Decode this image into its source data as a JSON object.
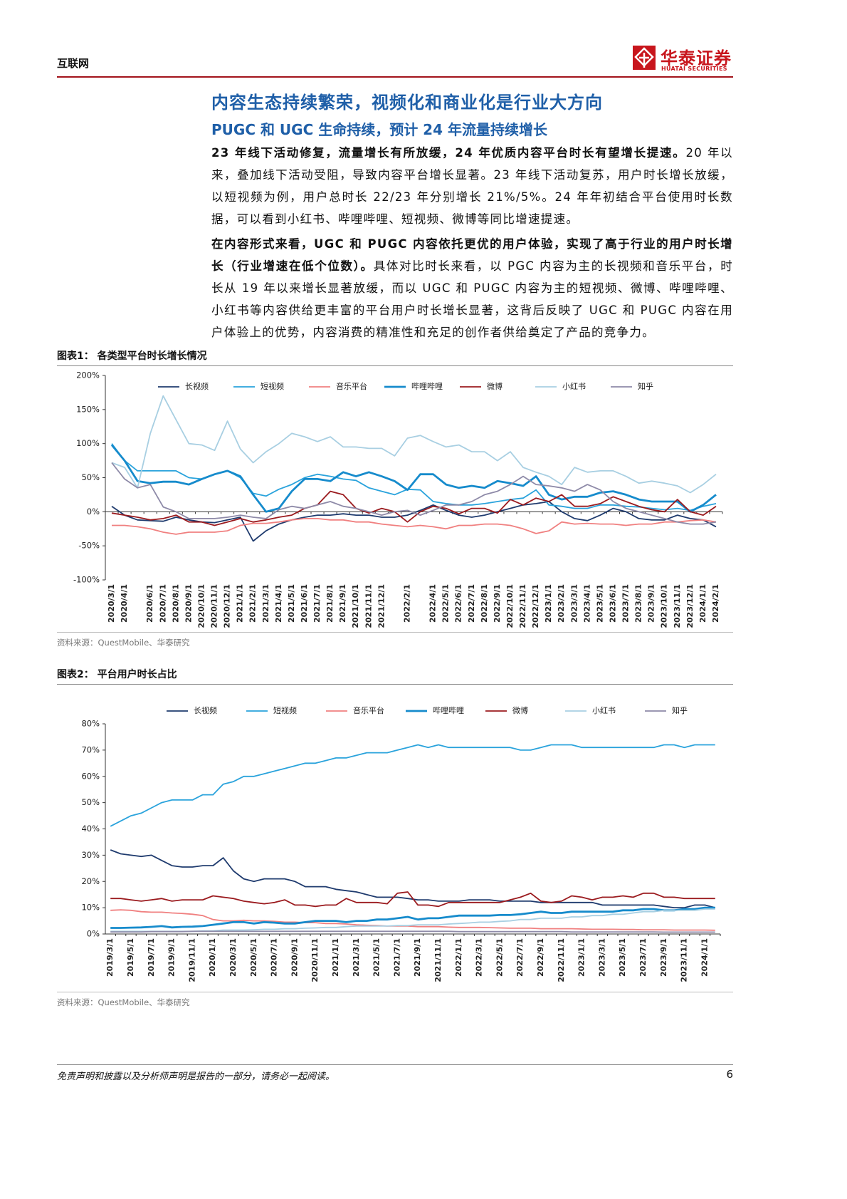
{
  "header": {
    "section": "互联网",
    "logo_cn": "华泰证券",
    "logo_en": "HUATAI SECURITIES"
  },
  "heading": "内容生态持续繁荣，视频化和商业化是行业大方向",
  "subheading": "PUGC 和 UGC 生命持续，预计 24 年流量持续增长",
  "paragraphs": [
    {
      "bold": "23 年线下活动修复，流量增长有所放缓，24 年优质内容平台时长有望增长提速。",
      "text": "20 年以来，叠加线下活动受阻，导致内容平台增长显著。23 年线下活动复苏，用户时长增长放缓，以短视频为例，用户总时长 22/23 年分别增长 21%/5%。24 年年初结合平台使用时长数据，可以看到小红书、哔哩哔哩、短视频、微博等同比增速提速。"
    },
    {
      "bold": "在内容形式来看，UGC 和 PUGC 内容依托更优的用户体验，实现了高于行业的用户时长增长（行业增速在低个位数）。",
      "text": "具体对比时长来看，以 PGC 内容为主的长视频和音乐平台，时长从 19 年以来增长显著放缓，而以 UGC 和 PUGC 内容为主的短视频、微博、哔哩哔哩、小红书等内容供给更丰富的平台用户时长增长显著，这背后反映了 UGC 和 PUGC 内容在用户体验上的优势，内容消费的精准性和充足的创作者供给奠定了产品的竞争力。"
    }
  ],
  "chart_data": [
    {
      "type": "line",
      "title": "图表1： 各类型平台时长增长情况",
      "source": "资料来源：QuestMobile、华泰研究",
      "legend": "top",
      "grid": false,
      "ylim": [
        -100,
        200
      ],
      "yticks": [
        {
          "value": -100,
          "label": "-100%"
        },
        {
          "value": -50,
          "label": "-50%"
        },
        {
          "value": 0,
          "label": "0%"
        },
        {
          "value": 50,
          "label": "50%"
        },
        {
          "value": 100,
          "label": "100%"
        },
        {
          "value": 150,
          "label": "150%"
        },
        {
          "value": 200,
          "label": "200%"
        }
      ],
      "categories": [
        "2020/3/1",
        "2020/4/1",
        null,
        "2020/6/1",
        "2020/7/1",
        "2020/8/1",
        "2020/9/1",
        "2020/10/1",
        "2020/11/1",
        "2020/12/1",
        "2021/1/1",
        "2021/2/1",
        "2021/3/1",
        "2021/4/1",
        "2021/5/1",
        "2021/6/1",
        "2021/7/1",
        "2021/8/1",
        "2021/9/1",
        "2021/10/1",
        "2021/11/1",
        "2021/12/1",
        null,
        "2022/2/1",
        null,
        "2022/4/1",
        "2022/5/1",
        "2022/6/1",
        "2022/7/1",
        "2022/8/1",
        "2022/9/1",
        "2022/10/1",
        "2022/11/1",
        "2022/12/1",
        "2023/1/1",
        "2023/2/1",
        "2023/3/1",
        "2023/4/1",
        "2023/5/1",
        "2023/6/1",
        "2023/7/1",
        "2023/8/1",
        "2023/9/1",
        "2023/10/1",
        "2023/11/1",
        "2023/12/1",
        "2024/1/1",
        "2024/2/1"
      ],
      "series": [
        {
          "name": "长视频",
          "color": "#1f3b6e",
          "values": [
            8,
            -5,
            -12,
            -13,
            -14,
            -8,
            -12,
            -15,
            -16,
            -12,
            -8,
            -43,
            -28,
            -18,
            -12,
            -8,
            -5,
            -5,
            -3,
            -5,
            -5,
            -8,
            -8,
            -5,
            2,
            10,
            2,
            -5,
            -8,
            -5,
            0,
            5,
            10,
            12,
            15,
            0,
            -10,
            -13,
            -5,
            5,
            0,
            -10,
            -12,
            -12,
            -5,
            -10,
            -12,
            -22
          ]
        },
        {
          "name": "短视频",
          "color": "#2aa3dc",
          "values": [
            100,
            75,
            60,
            60,
            60,
            60,
            50,
            48,
            55,
            60,
            50,
            27,
            23,
            33,
            40,
            50,
            55,
            52,
            48,
            46,
            35,
            30,
            25,
            33,
            32,
            15,
            12,
            10,
            10,
            12,
            15,
            18,
            20,
            32,
            10,
            8,
            5,
            5,
            10,
            10,
            8,
            7,
            5,
            3,
            5,
            2,
            8,
            12
          ]
        },
        {
          "name": "音乐平台",
          "color": "#f08080",
          "values": [
            -20,
            -20,
            -22,
            -25,
            -30,
            -33,
            -30,
            -30,
            -30,
            -28,
            -20,
            -17,
            -17,
            -15,
            -12,
            -10,
            -10,
            -12,
            -12,
            -15,
            -15,
            -18,
            -20,
            -22,
            -20,
            -22,
            -25,
            -20,
            -20,
            -18,
            -18,
            -20,
            -25,
            -32,
            -28,
            -15,
            -18,
            -17,
            -18,
            -18,
            -20,
            -18,
            -18,
            -15,
            -15,
            -13,
            -12,
            -15
          ]
        },
        {
          "name": "哔哩哔哩",
          "color": "#168bcc",
          "values": [
            98,
            75,
            45,
            42,
            44,
            44,
            40,
            48,
            55,
            60,
            52,
            25,
            0,
            5,
            30,
            48,
            48,
            45,
            58,
            52,
            58,
            52,
            45,
            32,
            55,
            55,
            40,
            35,
            38,
            35,
            45,
            42,
            38,
            52,
            25,
            18,
            22,
            22,
            28,
            30,
            25,
            18,
            15,
            15,
            15,
            0,
            10,
            25
          ]
        },
        {
          "name": "微博",
          "color": "#9b1b1f",
          "values": [
            -2,
            -5,
            -8,
            -12,
            -10,
            -5,
            -15,
            -15,
            -20,
            -15,
            -10,
            -15,
            -12,
            -8,
            -5,
            5,
            10,
            30,
            25,
            5,
            -2,
            5,
            0,
            -15,
            0,
            8,
            5,
            -3,
            5,
            5,
            -2,
            18,
            10,
            20,
            15,
            25,
            8,
            8,
            12,
            22,
            15,
            8,
            3,
            0,
            18,
            0,
            -5,
            8
          ]
        },
        {
          "name": "小红书",
          "color": "#a8cfe2",
          "values": [
            72,
            65,
            35,
            115,
            170,
            135,
            100,
            98,
            90,
            133,
            92,
            72,
            88,
            100,
            115,
            110,
            103,
            110,
            95,
            95,
            93,
            93,
            82,
            108,
            112,
            103,
            95,
            98,
            88,
            88,
            75,
            88,
            65,
            58,
            52,
            40,
            65,
            58,
            60,
            60,
            52,
            42,
            45,
            42,
            38,
            28,
            40,
            55
          ]
        },
        {
          "name": "知乎",
          "color": "#8e8aa8",
          "values": [
            72,
            48,
            35,
            40,
            7,
            0,
            -10,
            -10,
            -10,
            -8,
            -5,
            -8,
            -10,
            3,
            8,
            5,
            10,
            15,
            8,
            5,
            0,
            -5,
            0,
            2,
            -5,
            2,
            10,
            10,
            15,
            25,
            30,
            40,
            52,
            40,
            38,
            35,
            30,
            40,
            32,
            15,
            5,
            0,
            -5,
            -10,
            -15,
            -18,
            -18,
            -15
          ]
        }
      ]
    },
    {
      "type": "line",
      "title": "图表2： 平台用户时长占比",
      "source": "资料来源：QuestMobile、华泰研究",
      "legend": "top",
      "grid": false,
      "ylim": [
        0,
        80
      ],
      "yticks": [
        {
          "value": 0,
          "label": "0%"
        },
        {
          "value": 10,
          "label": "10%"
        },
        {
          "value": 20,
          "label": "20%"
        },
        {
          "value": 30,
          "label": "30%"
        },
        {
          "value": 40,
          "label": "40%"
        },
        {
          "value": 50,
          "label": "50%"
        },
        {
          "value": 60,
          "label": "60%"
        },
        {
          "value": 70,
          "label": "70%"
        },
        {
          "value": 80,
          "label": "80%"
        }
      ],
      "categories": [
        "2019/3/1",
        null,
        "2019/5/1",
        null,
        "2019/7/1",
        null,
        "2019/9/1",
        null,
        "2019/11/1",
        null,
        "2020/1/1",
        null,
        "2020/3/1",
        null,
        "2020/5/1",
        null,
        "2020/7/1",
        null,
        "2020/9/1",
        null,
        "2020/11/1",
        null,
        "2021/1/1",
        null,
        "2021/3/1",
        null,
        "2021/5/1",
        null,
        "2021/7/1",
        null,
        "2021/9/1",
        null,
        "2021/11/1",
        null,
        "2022/1/1",
        null,
        "2022/3/1",
        null,
        "2022/5/1",
        null,
        "2022/7/1",
        null,
        "2022/9/1",
        null,
        "2022/11/1",
        null,
        "2023/1/1",
        null,
        "2023/3/1",
        null,
        "2023/5/1",
        null,
        "2023/7/1",
        null,
        "2023/9/1",
        null,
        "2023/11/1",
        null,
        "2024/1/1",
        null
      ],
      "series": [
        {
          "name": "长视频",
          "color": "#1f3b6e",
          "values": [
            32,
            30.5,
            30,
            29.5,
            30,
            28,
            26,
            25.5,
            25.5,
            26,
            26,
            29,
            24,
            21,
            20,
            21,
            21,
            21,
            20,
            18,
            18,
            18,
            17,
            16.5,
            16,
            15,
            14,
            14,
            14,
            13.5,
            13,
            13,
            12.5,
            12.5,
            12.5,
            13,
            13,
            13,
            12.5,
            12.5,
            12.5,
            12.5,
            12,
            12,
            12,
            12,
            12,
            12,
            11,
            11,
            11,
            11,
            11,
            11,
            10.5,
            10,
            10,
            11,
            11,
            10
          ]
        },
        {
          "name": "短视频",
          "color": "#2aa3dc",
          "values": [
            41,
            43,
            45,
            46,
            48,
            50,
            51,
            51,
            51,
            53,
            53,
            57,
            58,
            60,
            60,
            61,
            62,
            63,
            64,
            65,
            65,
            66,
            67,
            67,
            68,
            69,
            69,
            69,
            70,
            71,
            72,
            71,
            72,
            71,
            71,
            71,
            71,
            71,
            71,
            71,
            70,
            70,
            71,
            72,
            72,
            72,
            71,
            71,
            71,
            71,
            71,
            71,
            71,
            71,
            72,
            72,
            71,
            72,
            72,
            72
          ]
        },
        {
          "name": "音乐平台",
          "color": "#f08080",
          "values": [
            9,
            9.2,
            9,
            8.5,
            8.3,
            8.3,
            8,
            7.8,
            7.5,
            7,
            5.5,
            5,
            5,
            5.2,
            5,
            5,
            4.8,
            4.5,
            4.5,
            4.3,
            4.3,
            4,
            4,
            3.8,
            3.5,
            3.3,
            3.2,
            3,
            3,
            3,
            2.8,
            2.8,
            2.8,
            2.6,
            2.5,
            2.5,
            2.5,
            2.4,
            2.3,
            2.2,
            2.2,
            2.2,
            2,
            2,
            2,
            2,
            1.9,
            1.8,
            1.8,
            1.8,
            1.7,
            1.7,
            1.6,
            1.6,
            1.6,
            1.5,
            1.5,
            1.5,
            1.5,
            1.4
          ]
        },
        {
          "name": "哔哩哔哩",
          "color": "#168bcc",
          "values": [
            2.3,
            2.3,
            2.4,
            2.5,
            2.7,
            3,
            2.5,
            2.7,
            2.8,
            3,
            3.5,
            4,
            4.5,
            4.5,
            4,
            4.5,
            4.3,
            4,
            4,
            4.5,
            5,
            5,
            5,
            4.5,
            5,
            5,
            5.5,
            5.5,
            6,
            6.5,
            5.5,
            6,
            6,
            6.5,
            7,
            7,
            7,
            7,
            7.2,
            7.2,
            7.5,
            8,
            8.5,
            8,
            8,
            8.5,
            8.5,
            8.5,
            8.5,
            8.5,
            9,
            9,
            9.5,
            9.5,
            9,
            9,
            9.5,
            9.5,
            10,
            10
          ]
        },
        {
          "name": "微博",
          "color": "#9b1b1f",
          "values": [
            13.5,
            13.5,
            13,
            12.5,
            13,
            13.5,
            12.5,
            13,
            13,
            13,
            14.5,
            14,
            13.5,
            12.5,
            12,
            11.5,
            12,
            13,
            11,
            11,
            10.5,
            11,
            11,
            13.5,
            12,
            12,
            12,
            11.5,
            15.5,
            16,
            11,
            11,
            10.5,
            12,
            12,
            12,
            12,
            12,
            12,
            13,
            14,
            15.5,
            12.5,
            12,
            12.5,
            14.5,
            14,
            13,
            14,
            14,
            14.5,
            14,
            15.5,
            15.5,
            14,
            14,
            13.5,
            13.5,
            13.5,
            13.5
          ]
        },
        {
          "name": "小红书",
          "color": "#a8cfe2",
          "values": [
            1,
            1,
            1,
            1,
            1,
            1,
            1,
            1,
            1,
            1.2,
            1.2,
            1.5,
            1.5,
            1.5,
            1.6,
            1.8,
            1.8,
            2,
            2,
            2.2,
            2.3,
            2.5,
            2.5,
            2.8,
            3,
            3,
            3,
            3,
            3.2,
            3.2,
            3.5,
            3.5,
            3.5,
            3.8,
            4,
            4.2,
            4.5,
            4.5,
            4.8,
            5,
            5.5,
            5.5,
            6,
            6,
            6,
            6.5,
            6.5,
            7,
            7,
            7.5,
            7.5,
            8,
            8.5,
            8.5,
            9,
            9,
            9,
            9,
            9.5,
            9.5
          ]
        },
        {
          "name": "知乎",
          "color": "#8e8aa8",
          "values": [
            0.8,
            0.8,
            0.8,
            0.8,
            0.9,
            0.9,
            0.9,
            0.9,
            1,
            1,
            1,
            1,
            1,
            1,
            1,
            1,
            1,
            1,
            1,
            1,
            1,
            1,
            1,
            1,
            1,
            1,
            1,
            1,
            1,
            1,
            1,
            1,
            1,
            1,
            0.9,
            0.9,
            0.9,
            0.9,
            0.9,
            0.9,
            0.9,
            0.9,
            0.9,
            0.9,
            0.9,
            0.8,
            0.8,
            0.8,
            0.8,
            0.8,
            0.8,
            0.8,
            0.8,
            0.8,
            0.7,
            0.7,
            0.7,
            0.7,
            0.7,
            0.7
          ]
        }
      ]
    }
  ],
  "footer": {
    "disclaimer": "免责声明和披露以及分析师声明是报告的一部分，请务必一起阅读。",
    "page": 6
  }
}
